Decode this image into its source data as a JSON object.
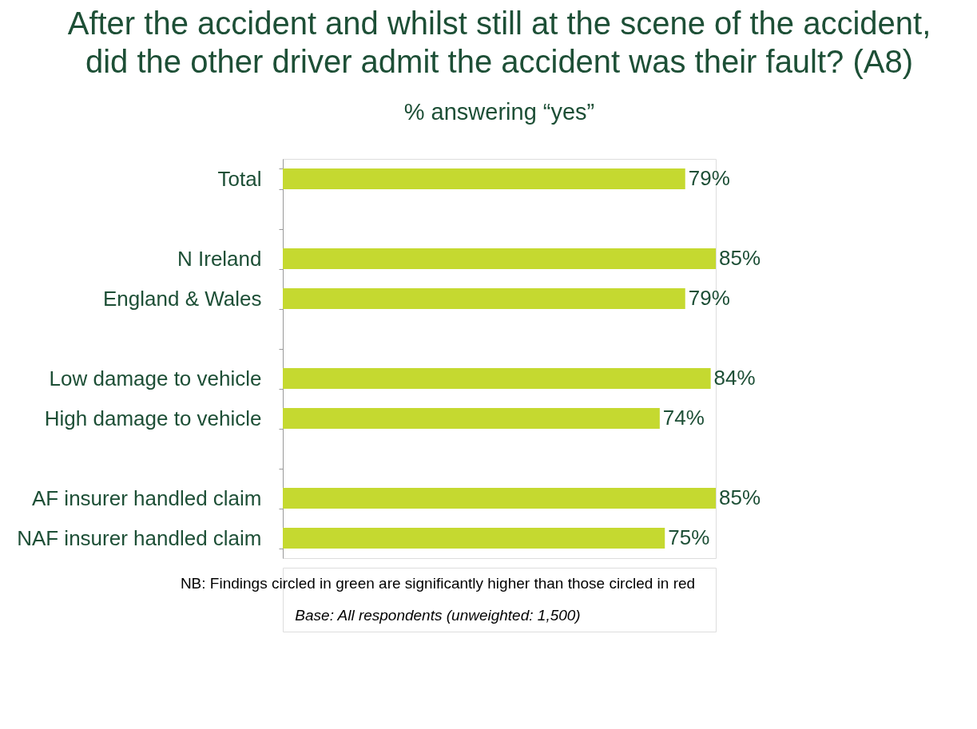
{
  "chart_data": {
    "type": "bar",
    "orientation": "horizontal",
    "title": "After the accident and whilst still at the scene of the accident, did the other driver admit the accident was their fault? (A8)",
    "subtitle": "% answering “yes”",
    "categories": [
      "Total",
      null,
      "N Ireland",
      "England & Wales",
      null,
      "Low damage to vehicle",
      "High damage to vehicle",
      null,
      "AF insurer handled claim",
      "NAF insurer handled claim"
    ],
    "values": [
      79,
      null,
      85,
      79,
      null,
      84,
      74,
      null,
      85,
      75
    ],
    "color": "#c5d930",
    "value_labels": [
      "79%",
      null,
      "85%",
      "79%",
      null,
      "84%",
      "74%",
      null,
      "85%",
      "75%"
    ],
    "annotations": [
      "NB: Findings circled in green are significantly higher than those circled in red",
      "Base: All respondents (unweighted: 1,500)"
    ]
  }
}
